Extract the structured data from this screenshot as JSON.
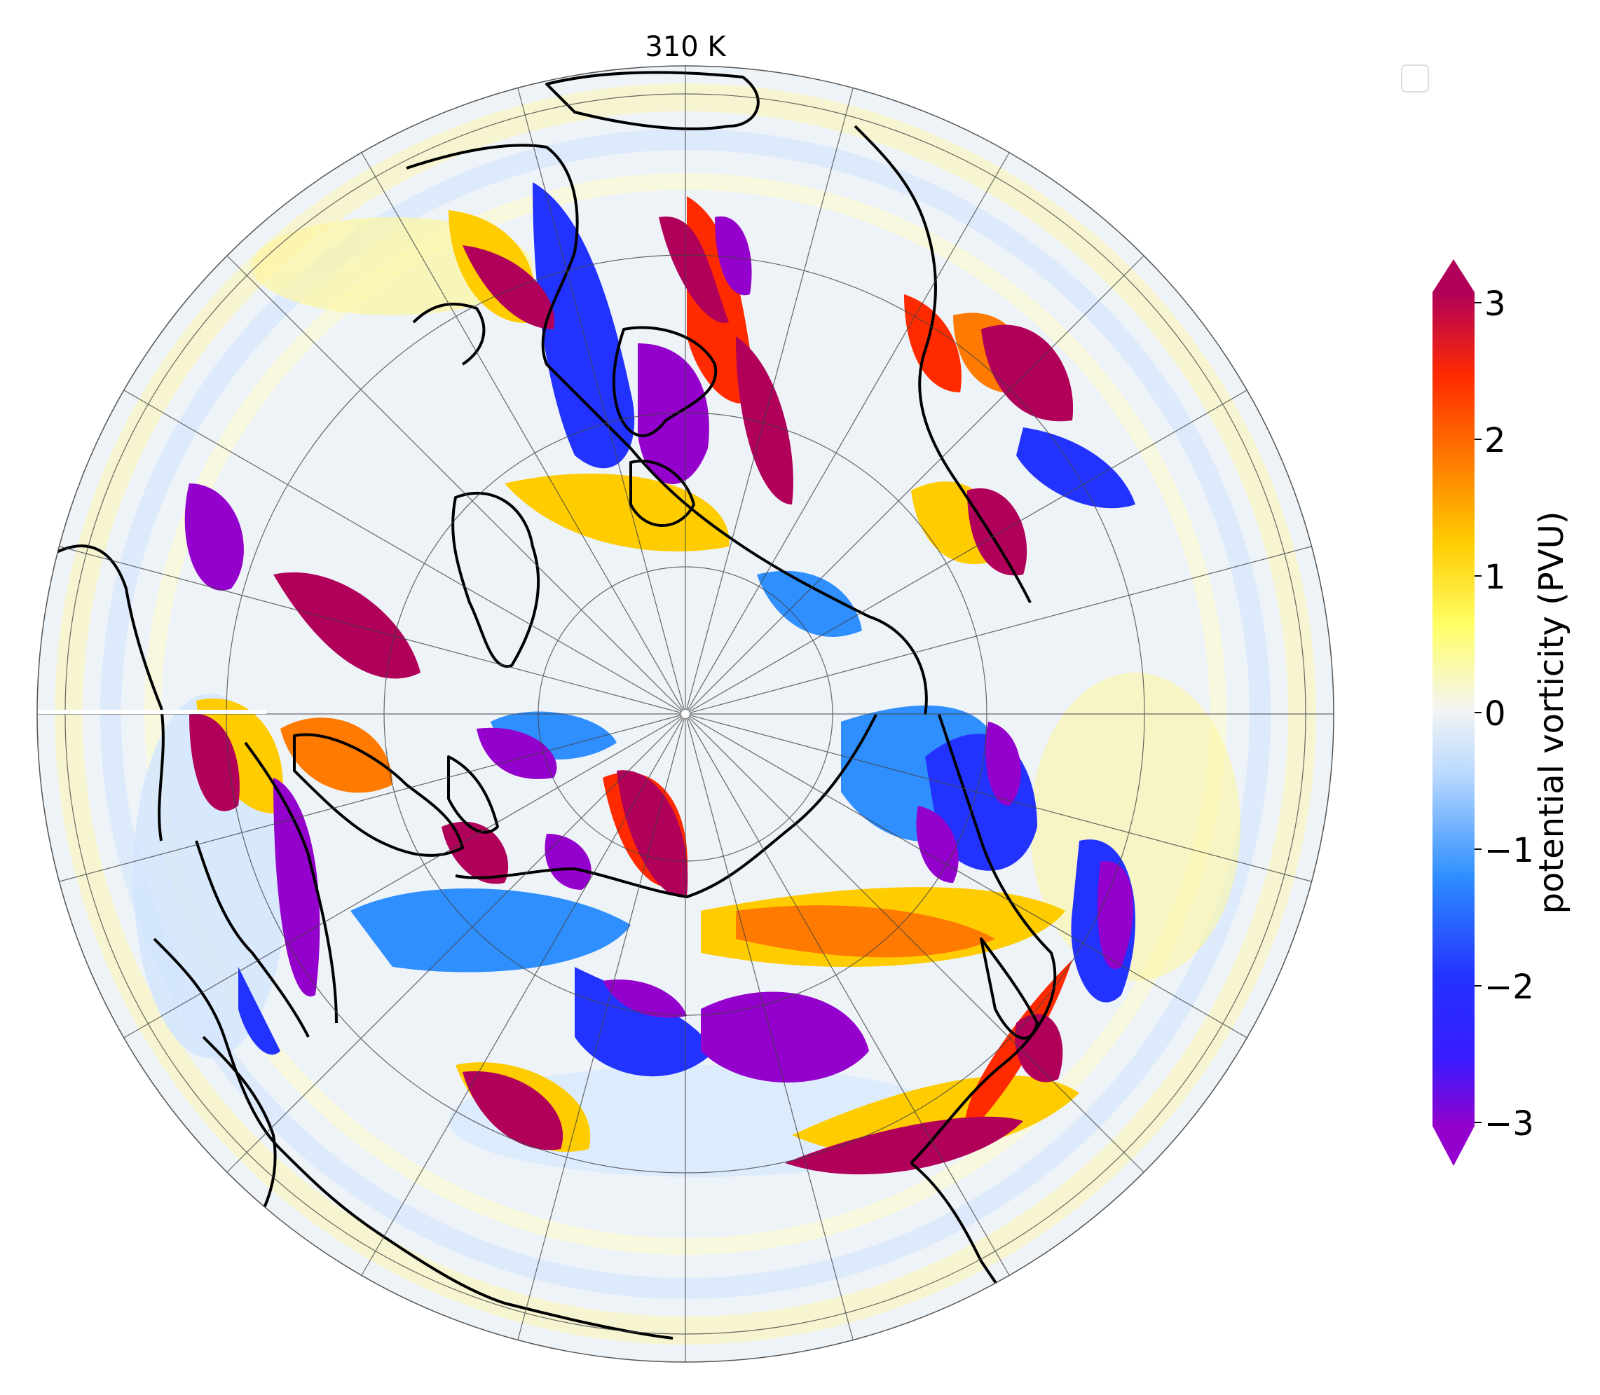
{
  "title": "310 K",
  "colorbar": {
    "label": "potential vorticity (PVU)",
    "ticks": [
      "3",
      "2",
      "1",
      "0",
      "−1",
      "−2",
      "−3"
    ],
    "range": [
      -3,
      3
    ],
    "extend": "both",
    "colors": [
      "#9400cc",
      "#2233ff",
      "#2f8fff",
      "#b8d8ff",
      "#f2f2f2",
      "#ffff66",
      "#ffcc00",
      "#ff7a00",
      "#ff2a00",
      "#b0005a"
    ]
  },
  "legend": {
    "entries": []
  },
  "map": {
    "projection": "north-polar-stereographic",
    "field": "potential vorticity anomaly",
    "coastline_color": "#000000",
    "graticule_color": "#444444"
  }
}
